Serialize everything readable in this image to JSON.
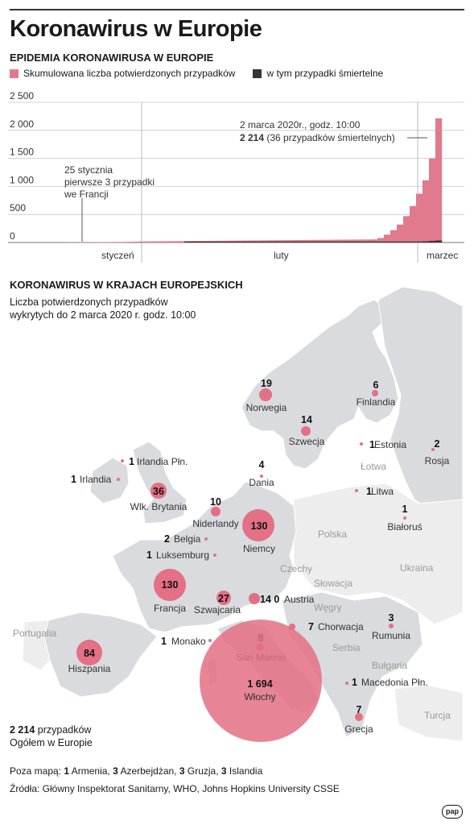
{
  "title": "Koronawirus w Europie",
  "section1": "EPIDEMIA KORONAWIRUSA W EUROPIE",
  "legend": {
    "cumulative": "Skumulowana liczba potwierdzonych przypadków",
    "deaths": "w tym przypadki śmiertelne"
  },
  "colors": {
    "cases": "#e07a8c",
    "deaths": "#3a3434",
    "land": "#d9dbdf",
    "land_light": "#ededee",
    "bubble": "#e37084"
  },
  "chart_data": {
    "type": "bar",
    "ylim": [
      0,
      2500
    ],
    "y_ticks": [
      "2 500",
      "2 000",
      "1 500",
      "1 000",
      "500",
      "0"
    ],
    "x_labels": [
      "styczeń",
      "luty",
      "marzec"
    ],
    "series": [
      {
        "name": "Skumulowana liczba potwierdzonych przypadków",
        "values": [
          0,
          0,
          0,
          0,
          0,
          3,
          3,
          4,
          5,
          6,
          7,
          8,
          9,
          10,
          12,
          15,
          18,
          20,
          21,
          22,
          23,
          24,
          25,
          26,
          27,
          28,
          29,
          30,
          31,
          32,
          33,
          34,
          35,
          36,
          37,
          38,
          39,
          40,
          41,
          42,
          43,
          44,
          45,
          46,
          47,
          48,
          49,
          50,
          51,
          52,
          53,
          54,
          55,
          80,
          140,
          220,
          320,
          470,
          650,
          870,
          1110,
          1500,
          2214
        ]
      },
      {
        "name": "w tym przypadki śmiertelne",
        "values": [
          0,
          0,
          0,
          0,
          0,
          0,
          0,
          0,
          0,
          0,
          0,
          0,
          0,
          0,
          0,
          0,
          0,
          0,
          0,
          0,
          0,
          0,
          0,
          1,
          1,
          1,
          1,
          1,
          1,
          1,
          1,
          1,
          1,
          1,
          1,
          1,
          1,
          1,
          1,
          1,
          1,
          1,
          1,
          1,
          1,
          1,
          1,
          1,
          1,
          1,
          1,
          1,
          1,
          1,
          2,
          3,
          4,
          7,
          12,
          17,
          21,
          29,
          36
        ]
      }
    ],
    "annotations": {
      "first_line1": "25 stycznia",
      "first_line2": "pierwsze 3 przypadki",
      "first_line3": "we Francji",
      "last_line1": "2 marca 2020r., godz. 10:00",
      "last_bold": "2 214",
      "last_rest": " (36 przypadków śmiertelnych)"
    }
  },
  "section2": "KORONAWIRUS W KRAJACH EUROPEJSKICH",
  "subtitle_line1": "Liczba potwierdzonych przypadków",
  "subtitle_line2": "wykrytych do 2 marca 2020 r. godz. 10:00",
  "countries": [
    {
      "name": "Norwegia",
      "value": "19"
    },
    {
      "name": "Finlandia",
      "value": "6"
    },
    {
      "name": "Szwecja",
      "value": "14"
    },
    {
      "name": "Estonia",
      "value": "1"
    },
    {
      "name": "Rosja",
      "value": "2"
    },
    {
      "name": "Irlandia Płn.",
      "value": "1"
    },
    {
      "name": "Irlandia",
      "value": "1"
    },
    {
      "name": "Dania",
      "value": "4"
    },
    {
      "name": "Litwa",
      "value": "1"
    },
    {
      "name": "Wlk. Brytania",
      "value": "36"
    },
    {
      "name": "Białoruś",
      "value": "1"
    },
    {
      "name": "Niderlandy",
      "value": "10"
    },
    {
      "name": "Niemcy",
      "value": "130"
    },
    {
      "name": "Belgia",
      "value": "2"
    },
    {
      "name": "Luksemburg",
      "value": "1"
    },
    {
      "name": "Francja",
      "value": "130"
    },
    {
      "name": "Szwajcaria",
      "value": "27"
    },
    {
      "name": "Austria",
      "value": "14 0"
    },
    {
      "name": "Chorwacja",
      "value": "7"
    },
    {
      "name": "Rumunia",
      "value": "3"
    },
    {
      "name": "Hiszpania",
      "value": "84"
    },
    {
      "name": "Monako",
      "value": "1"
    },
    {
      "name": "San Marino",
      "value": "8"
    },
    {
      "name": "Włochy",
      "value": "1 694"
    },
    {
      "name": "Macedonia Płn.",
      "value": "1"
    },
    {
      "name": "Grecja",
      "value": "7"
    }
  ],
  "other_countries": [
    "Łotwa",
    "Polska",
    "Ukraina",
    "Czechy",
    "Słowacja",
    "Węgry",
    "Serbia",
    "Bułgaria",
    "Turcja",
    "Portugalia"
  ],
  "total": {
    "value": "2 214",
    "unit": " przypadków",
    "label": "Ogółem w Europie"
  },
  "offmap": {
    "prefix": "Poza mapą: ",
    "items": [
      {
        "v": "1",
        "n": " Armenia, "
      },
      {
        "v": "3",
        "n": " Azerbejdżan, "
      },
      {
        "v": "3",
        "n": " Gruzja, "
      },
      {
        "v": "3",
        "n": " Islandia"
      }
    ]
  },
  "sources": "Źródła: Główny Inspektorat Sanitarny, WHO, Johns Hopkins University CSSE",
  "logo": "pap"
}
